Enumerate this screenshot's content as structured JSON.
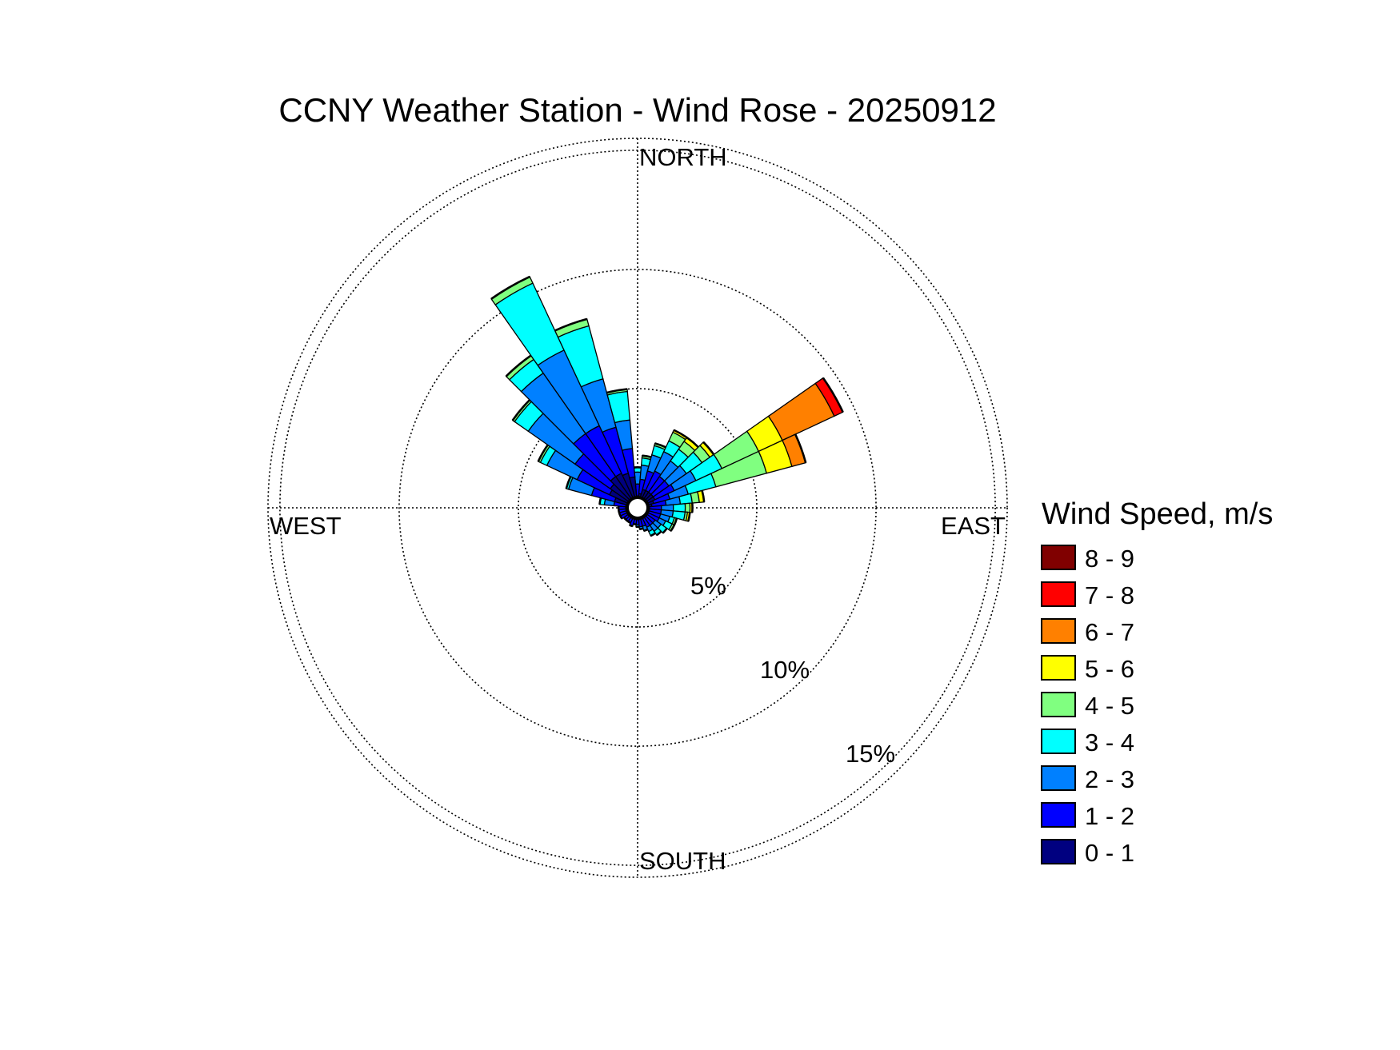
{
  "chart_data": {
    "type": "wind-rose",
    "title": "CCNY Weather Station - Wind Rose - 20250912",
    "directions": {
      "north": "NORTH",
      "south": "SOUTH",
      "east": "EAST",
      "west": "WEST"
    },
    "radial_unit": "%",
    "radial_max": 15.5,
    "rings": [
      {
        "value": 5,
        "label": "5%"
      },
      {
        "value": 10,
        "label": "10%"
      },
      {
        "value": 15,
        "label": "15%"
      }
    ],
    "legend": {
      "title": "Wind Speed, m/s",
      "bins": [
        {
          "label": "8 - 9",
          "color": "#800000"
        },
        {
          "label": "7 - 8",
          "color": "#ff0000"
        },
        {
          "label": "6 - 7",
          "color": "#ff8000"
        },
        {
          "label": "5 - 6",
          "color": "#ffff00"
        },
        {
          "label": "4 - 5",
          "color": "#80ff80"
        },
        {
          "label": "3 - 4",
          "color": "#00ffff"
        },
        {
          "label": "2 - 3",
          "color": "#0080ff"
        },
        {
          "label": "1 - 2",
          "color": "#0000ff"
        },
        {
          "label": "0 - 1",
          "color": "#000080"
        }
      ]
    },
    "sector_width_deg": 10,
    "bin_order": [
      "0 - 1",
      "1 - 2",
      "2 - 3",
      "3 - 4",
      "4 - 5",
      "5 - 6",
      "6 - 7",
      "7 - 8",
      "8 - 9"
    ],
    "sectors": [
      {
        "dir": 0,
        "cumulative": [
          0.5,
          1.0,
          1.5,
          1.7
        ]
      },
      {
        "dir": 10,
        "cumulative": [
          0.6,
          1.2,
          1.8,
          2.1,
          2.2
        ]
      },
      {
        "dir": 20,
        "cumulative": [
          0.8,
          1.6,
          2.3,
          2.7,
          2.8
        ]
      },
      {
        "dir": 30,
        "cumulative": [
          0.8,
          1.7,
          2.6,
          3.1,
          3.5,
          3.6
        ]
      },
      {
        "dir": 40,
        "cumulative": [
          0.8,
          1.6,
          2.4,
          3.0,
          3.4,
          3.6
        ]
      },
      {
        "dir": 50,
        "cumulative": [
          0.8,
          1.6,
          2.5,
          3.3,
          3.7,
          3.9
        ]
      },
      {
        "dir": 60,
        "cumulative": [
          0.8,
          1.7,
          2.7,
          3.9,
          5.6,
          6.7,
          9.1,
          9.5
        ]
      },
      {
        "dir": 70,
        "cumulative": [
          0.7,
          1.4,
          2.2,
          3.4,
          5.6,
          6.7,
          7.3
        ]
      },
      {
        "dir": 80,
        "cumulative": [
          0.6,
          1.2,
          1.8,
          2.3,
          2.6,
          2.8
        ]
      },
      {
        "dir": 90,
        "cumulative": [
          0.5,
          1.0,
          1.5,
          2.0,
          2.2,
          2.3
        ]
      },
      {
        "dir": 100,
        "cumulative": [
          0.5,
          1.0,
          1.5,
          2.0,
          2.1,
          2.2
        ]
      },
      {
        "dir": 110,
        "cumulative": [
          0.5,
          1.0,
          1.4,
          1.6,
          1.7
        ]
      },
      {
        "dir": 120,
        "cumulative": [
          0.5,
          1.0,
          1.3,
          1.6,
          1.7
        ]
      },
      {
        "dir": 130,
        "cumulative": [
          0.5,
          0.9,
          1.2,
          1.5
        ]
      },
      {
        "dir": 140,
        "cumulative": [
          0.5,
          0.9,
          1.2,
          1.4
        ]
      },
      {
        "dir": 150,
        "cumulative": [
          0.5,
          0.9,
          1.1,
          1.3
        ]
      },
      {
        "dir": 160,
        "cumulative": [
          0.5,
          0.8,
          1.0
        ]
      },
      {
        "dir": 170,
        "cumulative": [
          0.5,
          0.8,
          0.9
        ]
      },
      {
        "dir": 180,
        "cumulative": [
          0.5,
          0.7,
          0.8
        ]
      },
      {
        "dir": 190,
        "cumulative": [
          0.5,
          0.7
        ]
      },
      {
        "dir": 200,
        "cumulative": [
          0.5,
          0.8
        ]
      },
      {
        "dir": 210,
        "cumulative": [
          0.5,
          0.7
        ]
      },
      {
        "dir": 220,
        "cumulative": [
          0.5,
          0.7
        ]
      },
      {
        "dir": 230,
        "cumulative": [
          0.5,
          0.7
        ]
      },
      {
        "dir": 240,
        "cumulative": [
          0.5,
          0.8
        ]
      },
      {
        "dir": 250,
        "cumulative": [
          0.5,
          0.8
        ]
      },
      {
        "dir": 260,
        "cumulative": [
          0.5,
          0.8
        ]
      },
      {
        "dir": 270,
        "cumulative": [
          0.5,
          0.8
        ]
      },
      {
        "dir": 280,
        "cumulative": [
          0.5,
          1.0,
          1.4,
          1.6
        ]
      },
      {
        "dir": 290,
        "cumulative": [
          1.0,
          2.0,
          3.0,
          3.1
        ]
      },
      {
        "dir": 300,
        "cumulative": [
          1.3,
          2.8,
          4.2,
          4.5,
          4.6
        ]
      },
      {
        "dir": 310,
        "cumulative": [
          1.4,
          3.2,
          5.6,
          6.3,
          6.4
        ]
      },
      {
        "dir": 320,
        "cumulative": [
          1.6,
          3.8,
          6.9,
          7.6,
          7.8
        ]
      },
      {
        "dir": 330,
        "cumulative": [
          1.6,
          3.8,
          7.3,
          10.4,
          10.7
        ]
      },
      {
        "dir": 340,
        "cumulative": [
          1.5,
          3.5,
          5.6,
          7.9,
          8.2
        ]
      },
      {
        "dir": 350,
        "cumulative": [
          1.3,
          2.5,
          3.7,
          4.9,
          5.0
        ]
      }
    ]
  }
}
